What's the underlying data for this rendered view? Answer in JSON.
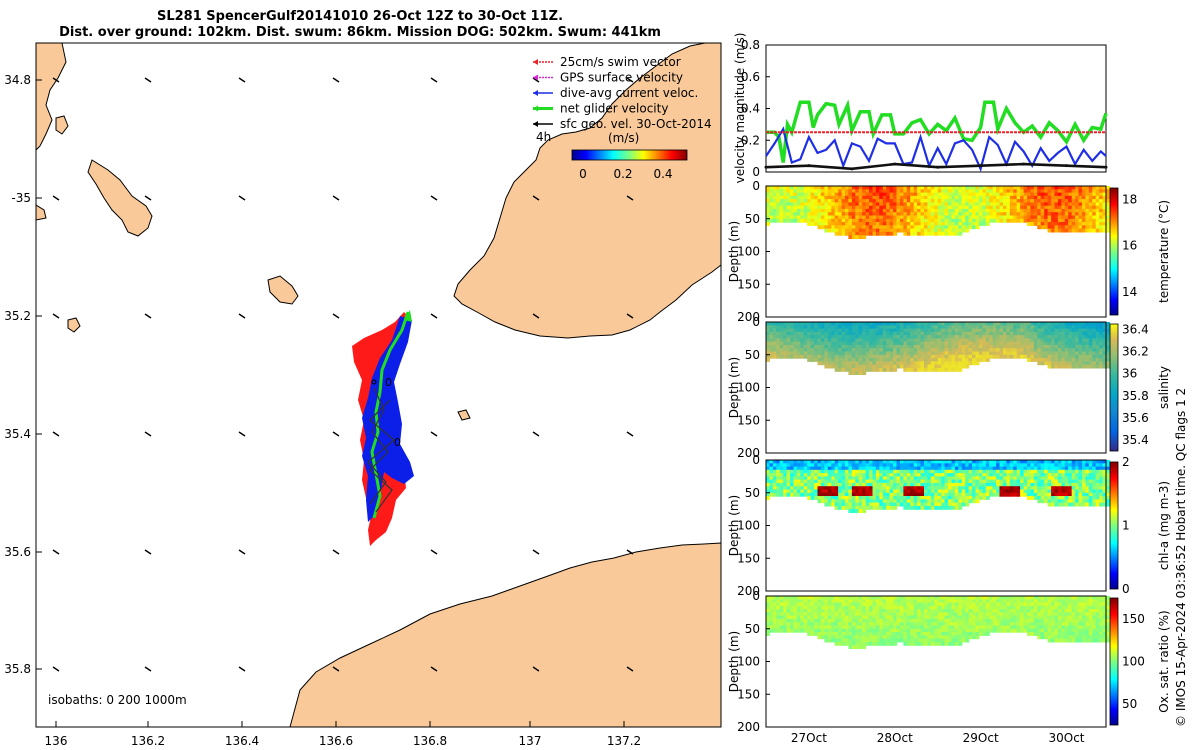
{
  "header": {
    "title_line1": "SL281 SpencerGulf20141010 26-Oct 12Z to 30-Oct 11Z.",
    "title_line2": "Dist. over ground: 102km. Dist. swum: 86km. Mission DOG: 502km. Swum: 441km"
  },
  "map": {
    "lon_ticks": [
      "136",
      "136.2",
      "136.4",
      "136.6",
      "136.8",
      "137",
      "137.2"
    ],
    "lat_ticks": [
      "34.8",
      "-35",
      "35.2",
      "35.4",
      "35.6",
      "35.8"
    ],
    "isobaths_label": "isobaths: 0   200  1000m",
    "time_marker": "4h",
    "legend": [
      {
        "label": "25cm/s swim vector",
        "color": "#e8242a"
      },
      {
        "label": "GPS surface velocity",
        "color": "#d62ad6"
      },
      {
        "label": "dive-avg current veloc.",
        "color": "#1f2fe6"
      },
      {
        "label": "net glider velocity",
        "color": "#22dd22"
      },
      {
        "label": "sfc geo. vel. 30-Oct-2014",
        "color": "#000000"
      }
    ],
    "colorbar": {
      "unit": "(m/s)",
      "ticks": [
        "0",
        "0.2",
        "0.4"
      ]
    },
    "land_color": "#f9c999",
    "track_colors": {
      "swim": "#ff1a1a",
      "current": "#0b1fe8",
      "net": "#22dd22"
    }
  },
  "chart_data": [
    {
      "type": "line",
      "ylabel": "velocity magnitude (m/s)",
      "ylim": [
        0,
        0.8
      ],
      "y_ticks": [
        "0",
        "0.2",
        "0.4",
        "0.6",
        "0.8"
      ],
      "x_ticks": [
        "27Oct",
        "28Oct",
        "29Oct",
        "30Oct"
      ],
      "series": [
        {
          "color": "#22dd22",
          "x": [
            26.5,
            26.6,
            26.65,
            26.7,
            26.75,
            26.8,
            26.9,
            27.0,
            27.05,
            27.1,
            27.2,
            27.3,
            27.35,
            27.45,
            27.5,
            27.6,
            27.7,
            27.75,
            27.85,
            27.95,
            28.0,
            28.1,
            28.2,
            28.3,
            28.4,
            28.5,
            28.6,
            28.7,
            28.8,
            28.9,
            29.0,
            29.05,
            29.15,
            29.2,
            29.3,
            29.4,
            29.5,
            29.6,
            29.7,
            29.8,
            29.9,
            30.0,
            30.1,
            30.2,
            30.3,
            30.4,
            30.46
          ],
          "y": [
            0.25,
            0.25,
            0.22,
            0.06,
            0.3,
            0.25,
            0.44,
            0.44,
            0.28,
            0.36,
            0.43,
            0.42,
            0.3,
            0.42,
            0.26,
            0.38,
            0.38,
            0.24,
            0.36,
            0.36,
            0.24,
            0.24,
            0.31,
            0.33,
            0.24,
            0.3,
            0.26,
            0.34,
            0.21,
            0.2,
            0.28,
            0.44,
            0.44,
            0.27,
            0.4,
            0.31,
            0.25,
            0.29,
            0.22,
            0.31,
            0.26,
            0.19,
            0.3,
            0.2,
            0.28,
            0.27,
            0.37
          ]
        },
        {
          "color": "#1f2fe6",
          "x": [
            26.5,
            26.6,
            26.7,
            26.8,
            26.9,
            27.0,
            27.1,
            27.2,
            27.3,
            27.4,
            27.5,
            27.6,
            27.7,
            27.8,
            27.9,
            28.0,
            28.1,
            28.2,
            28.3,
            28.4,
            28.5,
            28.6,
            28.7,
            28.8,
            28.9,
            29.0,
            29.1,
            29.2,
            29.3,
            29.4,
            29.5,
            29.6,
            29.7,
            29.8,
            29.9,
            30.0,
            30.1,
            30.2,
            30.3,
            30.4,
            30.46
          ],
          "y": [
            0.1,
            0.18,
            0.27,
            0.06,
            0.08,
            0.22,
            0.12,
            0.14,
            0.2,
            0.04,
            0.18,
            0.16,
            0.07,
            0.21,
            0.18,
            0.18,
            0.05,
            0.06,
            0.22,
            0.04,
            0.15,
            0.05,
            0.18,
            0.2,
            0.14,
            0.02,
            0.22,
            0.17,
            0.05,
            0.19,
            0.13,
            0.04,
            0.15,
            0.07,
            0.12,
            0.16,
            0.05,
            0.14,
            0.07,
            0.13,
            0.1
          ]
        },
        {
          "color": "#e8242a",
          "x": [
            26.5,
            30.46
          ],
          "y": [
            0.25,
            0.25
          ]
        },
        {
          "color": "#111111",
          "x": [
            26.5,
            27.0,
            27.5,
            28.0,
            28.5,
            29.0,
            29.5,
            30.0,
            30.46
          ],
          "y": [
            0.03,
            0.04,
            0.02,
            0.05,
            0.03,
            0.04,
            0.05,
            0.04,
            0.03
          ]
        }
      ]
    },
    {
      "type": "heatmap",
      "ylabel": "Depth (m)",
      "clabel": "temperature (°C)",
      "y_ticks": [
        "0",
        "50",
        "100",
        "150",
        "200"
      ],
      "c_ticks": [
        "18",
        "16",
        "14"
      ],
      "clim": [
        13,
        18.5
      ]
    },
    {
      "type": "heatmap",
      "ylabel": "Depth (m)",
      "clabel": "salinity",
      "y_ticks": [
        "0",
        "50",
        "100",
        "150",
        "200"
      ],
      "c_ticks": [
        "36.4",
        "36.2",
        "36",
        "35.8",
        "35.6",
        "35.4"
      ],
      "clim": [
        35.3,
        36.45
      ]
    },
    {
      "type": "heatmap",
      "ylabel": "Depth (m)",
      "clabel": "chl-a (mg m-3)",
      "y_ticks": [
        "0",
        "50",
        "100",
        "150",
        "200"
      ],
      "c_ticks": [
        "2",
        "1",
        "0"
      ],
      "clim": [
        0,
        2
      ]
    },
    {
      "type": "heatmap",
      "ylabel": "Depth (m)",
      "clabel": "Ox. sat. ratio (%)",
      "y_ticks": [
        "0",
        "50",
        "100",
        "150",
        "200"
      ],
      "c_ticks": [
        "150",
        "100",
        "50"
      ],
      "clim": [
        25,
        175
      ]
    }
  ],
  "footer": {
    "side_note": "© IMOS 15-Apr-2024 03:36:52 Hobart time. QC flags 1  2"
  }
}
